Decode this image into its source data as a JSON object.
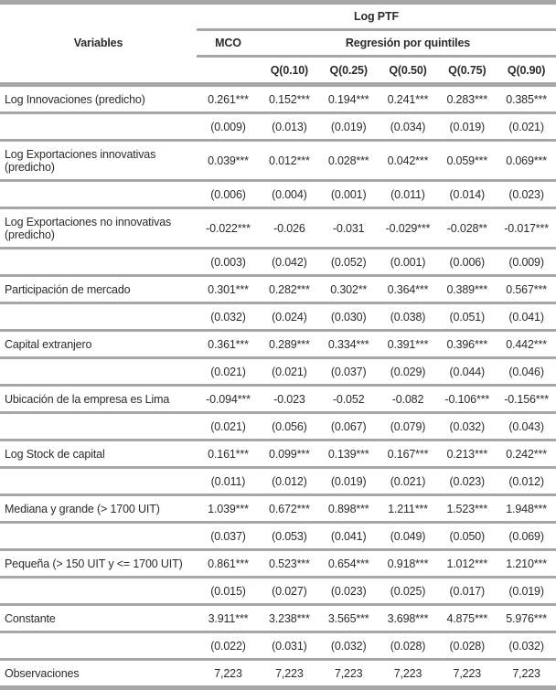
{
  "table": {
    "title": "Log PTF",
    "variables_header": "Variables",
    "mco_header": "MCO",
    "quantiles_header": "Regresión por quintiles",
    "quantile_cols": [
      "Q(0.10)",
      "Q(0.25)",
      "Q(0.50)",
      "Q(0.75)",
      "Q(0.90)"
    ],
    "rows": [
      {
        "label": "Log Innovaciones (predicho)",
        "coefficients": [
          "0.261***",
          "0.152***",
          "0.194***",
          "0.241***",
          "0.283***",
          "0.385***"
        ],
        "std_errors": [
          "(0.009)",
          "(0.013)",
          "(0.019)",
          "(0.034)",
          "(0.019)",
          "(0.021)"
        ]
      },
      {
        "label": "Log Exportaciones innovativas (predicho)",
        "coefficients": [
          "0.039***",
          "0.012***",
          "0.028***",
          "0.042***",
          "0.059***",
          "0.069***"
        ],
        "std_errors": [
          "(0.006)",
          "(0.004)",
          "(0.001)",
          "(0.011)",
          "(0.014)",
          "(0.023)"
        ]
      },
      {
        "label": "Log Exportaciones no innovativas (predicho)",
        "coefficients": [
          "-0.022***",
          "-0.026",
          "-0.031",
          "-0.029***",
          "-0.028**",
          "-0.017***"
        ],
        "std_errors": [
          "(0.003)",
          "(0.042)",
          "(0.052)",
          "(0.001)",
          "(0.006)",
          "(0.009)"
        ]
      },
      {
        "label": "Participación de mercado",
        "coefficients": [
          "0.301***",
          "0.282***",
          "0.302**",
          "0.364***",
          "0.389***",
          "0.567***"
        ],
        "std_errors": [
          "(0.032)",
          "(0.024)",
          "(0.030)",
          "(0.038)",
          "(0.051)",
          "(0.041)"
        ]
      },
      {
        "label": "Capital extranjero",
        "coefficients": [
          "0.361***",
          "0.289***",
          "0.334***",
          "0.391***",
          "0.396***",
          "0.442***"
        ],
        "std_errors": [
          "(0.021)",
          "(0.021)",
          "(0.037)",
          "(0.029)",
          "(0.044)",
          "(0.046)"
        ]
      },
      {
        "label": "Ubicación de la empresa es Lima",
        "coefficients": [
          "-0.094***",
          "-0.023",
          "-0.052",
          "-0.082",
          "-0.106***",
          "-0.156***"
        ],
        "std_errors": [
          "(0.021)",
          "(0.056)",
          "(0.067)",
          "(0.079)",
          "(0.032)",
          "(0.043)"
        ]
      },
      {
        "label": "Log Stock de capital",
        "coefficients": [
          "0.161***",
          "0.099***",
          "0.139***",
          "0.167***",
          "0.213***",
          "0.242***"
        ],
        "std_errors": [
          "(0.011)",
          "(0.012)",
          "(0.019)",
          "(0.021)",
          "(0.023)",
          "(0.012)"
        ]
      },
      {
        "label": "Mediana y grande (> 1700 UIT)",
        "coefficients": [
          "1.039***",
          "0.672***",
          "0.898***",
          "1.211***",
          "1.523***",
          "1.948***"
        ],
        "std_errors": [
          "(0.037)",
          "(0.053)",
          "(0.041)",
          "(0.049)",
          "(0.050)",
          "(0.069)"
        ]
      },
      {
        "label": "Pequeña (> 150 UIT y <= 1700 UIT)",
        "coefficients": [
          "0.861***",
          "0.523***",
          "0.654***",
          "0.918***",
          "1.012***",
          "1.210***"
        ],
        "std_errors": [
          "(0.015)",
          "(0.027)",
          "(0.023)",
          "(0.025)",
          "(0.017)",
          "(0.019)"
        ]
      },
      {
        "label": "Constante",
        "coefficients": [
          "3.911***",
          "3.238***",
          "3.565***",
          "3.698***",
          "4.875***",
          "5.976***"
        ],
        "std_errors": [
          "(0.022)",
          "(0.031)",
          "(0.032)",
          "(0.028)",
          "(0.028)",
          "(0.032)"
        ]
      }
    ],
    "footer_row": {
      "label": "Observaciones",
      "values": [
        "7,223",
        "7,223",
        "7,223",
        "7,223",
        "7,223",
        "7,223"
      ]
    },
    "colors": {
      "rule_gray": "#a7a7a7",
      "text": "#2e2b27"
    }
  }
}
